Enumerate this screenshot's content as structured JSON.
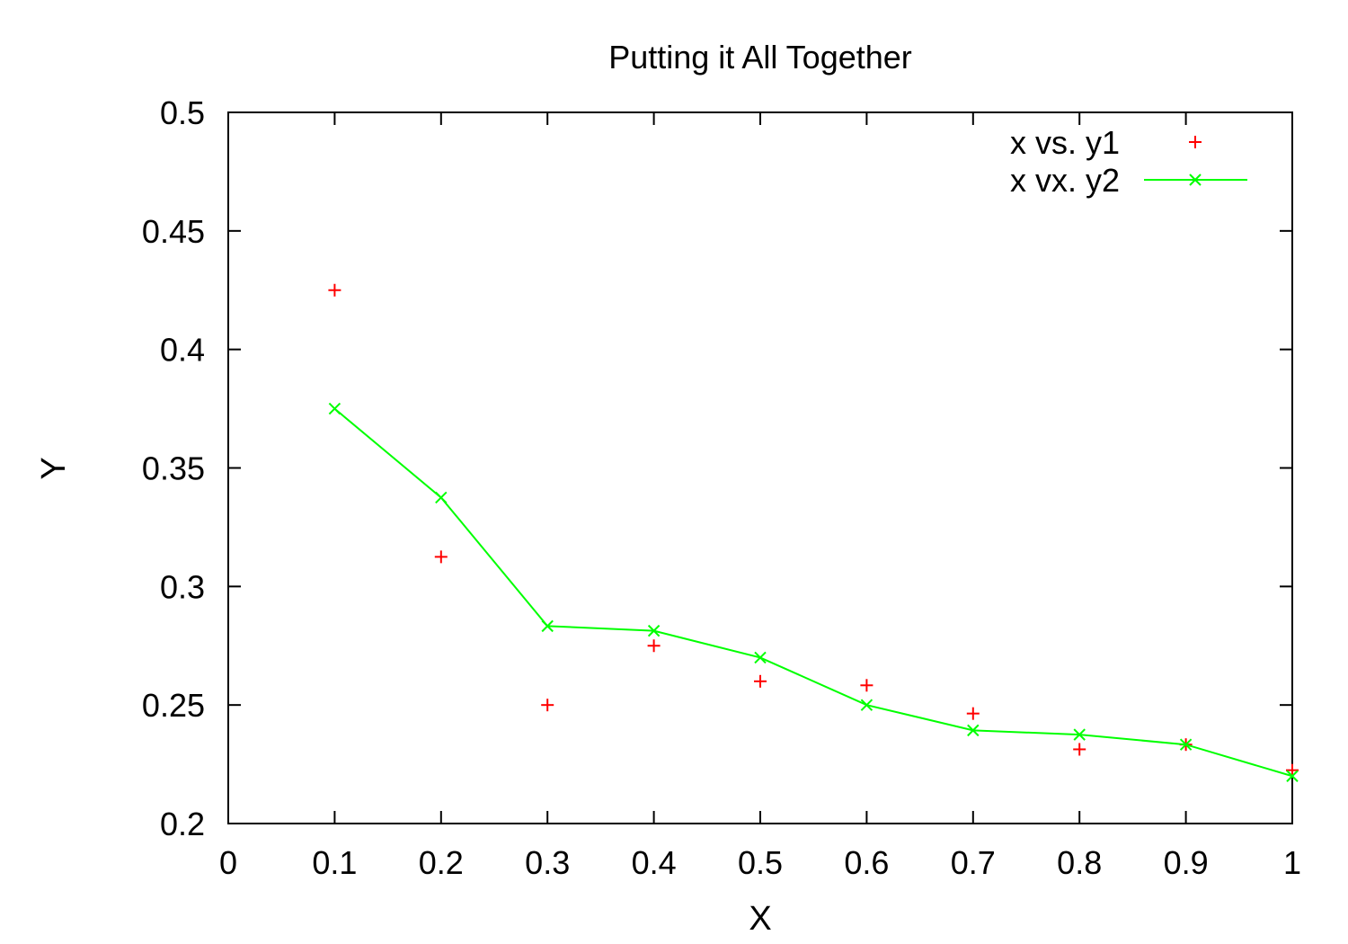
{
  "chart_data": {
    "type": "line",
    "title": "Putting it All Together",
    "xlabel": "X",
    "ylabel": "Y",
    "xlim": [
      0,
      1
    ],
    "ylim": [
      0.2,
      0.5
    ],
    "xticks": [
      0,
      0.1,
      0.2,
      0.3,
      0.4,
      0.5,
      0.6,
      0.7,
      0.8,
      0.9,
      1
    ],
    "xtick_labels": [
      "0",
      "0.1",
      "0.2",
      "0.3",
      "0.4",
      "0.5",
      "0.6",
      "0.7",
      "0.8",
      "0.9",
      "1"
    ],
    "yticks": [
      0.2,
      0.25,
      0.3,
      0.35,
      0.4,
      0.45,
      0.5
    ],
    "ytick_labels": [
      "0.2",
      "0.25",
      "0.3",
      "0.35",
      "0.4",
      "0.45",
      "0.5"
    ],
    "grid": false,
    "legend_position": "top-right",
    "series": [
      {
        "name": "x vs. y1",
        "style": "points",
        "marker": "plus",
        "color": "#ff0000",
        "x": [
          0.1,
          0.2,
          0.3,
          0.4,
          0.5,
          0.6,
          0.7,
          0.8,
          0.9,
          1.0
        ],
        "y": [
          0.425,
          0.3125,
          0.25,
          0.275,
          0.26,
          0.2583,
          0.2464,
          0.2313,
          0.2333,
          0.2225
        ]
      },
      {
        "name": "x vx. y2",
        "style": "linespoints",
        "marker": "cross",
        "color": "#00ff00",
        "x": [
          0.1,
          0.2,
          0.3,
          0.4,
          0.5,
          0.6,
          0.7,
          0.8,
          0.9,
          1.0
        ],
        "y": [
          0.375,
          0.3375,
          0.2833,
          0.2813,
          0.27,
          0.25,
          0.2393,
          0.2375,
          0.2333,
          0.22
        ]
      }
    ]
  }
}
